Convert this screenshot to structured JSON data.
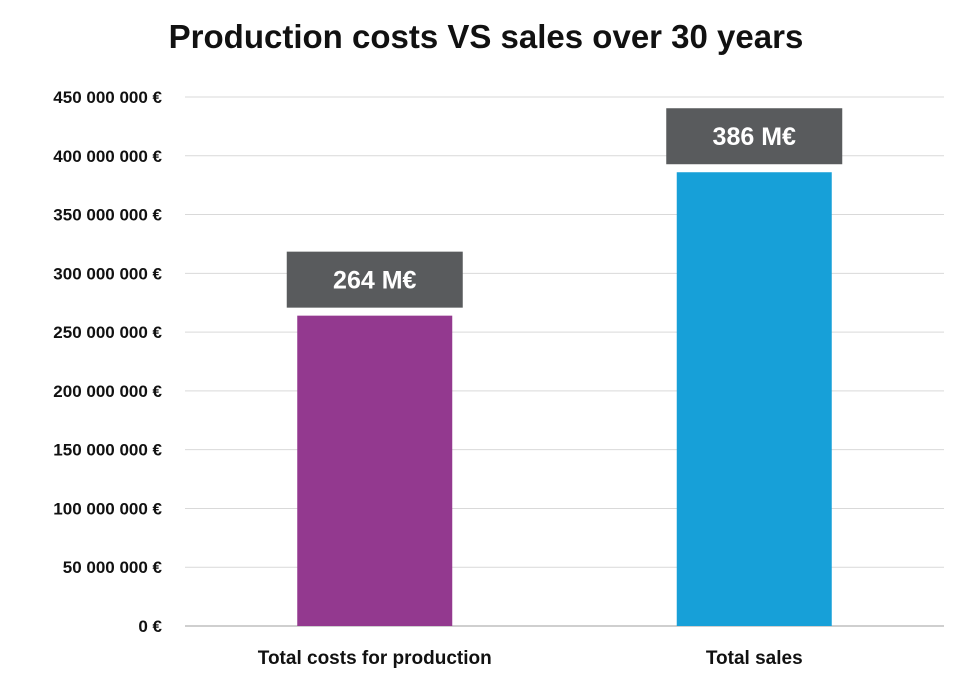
{
  "chart_data": {
    "type": "bar",
    "title": "Production costs VS sales over 30 years",
    "categories": [
      "Total costs for production",
      "Total sales"
    ],
    "values": [
      264000000,
      386000000
    ],
    "data_labels": [
      "264 M€",
      "386 M€"
    ],
    "colors": [
      "#93398F",
      "#17A0D8"
    ],
    "label_box_color": "#595B5D",
    "ylim": [
      0,
      450000000
    ],
    "y_ticks": [
      0,
      50000000,
      100000000,
      150000000,
      200000000,
      250000000,
      300000000,
      350000000,
      400000000,
      450000000
    ],
    "y_tick_labels": [
      "0 €",
      "50 000 000 €",
      "100 000 000 €",
      "150 000 000 €",
      "200 000 000 €",
      "250 000 000 €",
      "300 000 000 €",
      "350 000 000 €",
      "400 000 000 €",
      "450 000 000 €"
    ],
    "xlabel": "",
    "ylabel": "",
    "grid": true,
    "legend": "none"
  }
}
